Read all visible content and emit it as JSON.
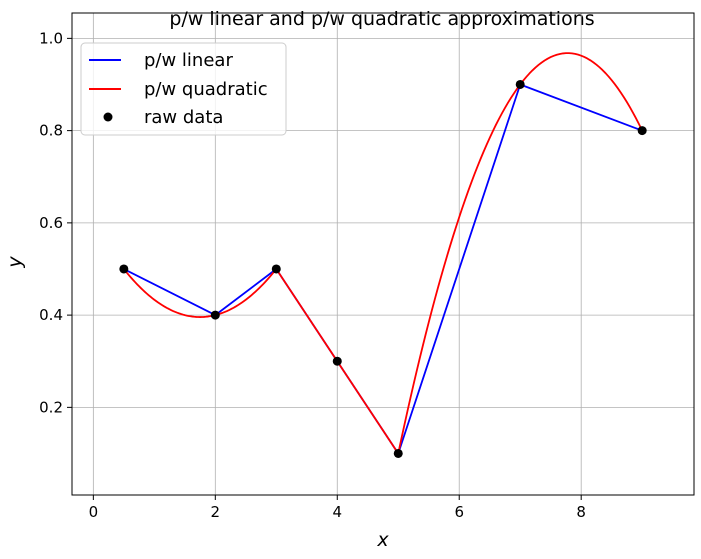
{
  "chart_data": {
    "type": "line",
    "title": "p/w linear and p/w quadratic approximations",
    "xlabel": "x",
    "ylabel": "y",
    "xlim": [
      -0.35,
      9.85
    ],
    "ylim": [
      0.01,
      1.055
    ],
    "xticks": [
      0,
      2,
      4,
      6,
      8
    ],
    "xtick_labels": [
      "0",
      "2",
      "4",
      "6",
      "8"
    ],
    "yticks": [
      0.2,
      0.4,
      0.6,
      0.8,
      1.0
    ],
    "ytick_labels": [
      "0.2",
      "0.4",
      "0.6",
      "0.8",
      "1.0"
    ],
    "grid": true,
    "legend_position": "top-left",
    "raw_data": {
      "x": [
        0.5,
        2,
        3,
        4,
        5,
        7,
        9
      ],
      "y": [
        0.5,
        0.4,
        0.5,
        0.3,
        0.1,
        0.9,
        0.8
      ]
    },
    "series": [
      {
        "name": "p/w linear",
        "color": "#0000ff",
        "style": "line",
        "x": [
          0.5,
          2,
          3,
          4,
          5,
          7,
          9
        ],
        "y": [
          0.5,
          0.4,
          0.5,
          0.3,
          0.1,
          0.9,
          0.8
        ]
      },
      {
        "name": "p/w quadratic",
        "color": "#ff0000",
        "style": "line",
        "x": [
          0.5,
          2,
          3,
          4,
          5,
          7,
          9
        ],
        "y": [
          0.5,
          0.4,
          0.5,
          0.3,
          0.1,
          0.9,
          0.8
        ]
      },
      {
        "name": "raw data",
        "color": "#000000",
        "style": "markers",
        "x": [
          0.5,
          2,
          3,
          4,
          5,
          7,
          9
        ],
        "y": [
          0.5,
          0.4,
          0.5,
          0.3,
          0.1,
          0.9,
          0.8
        ]
      }
    ]
  }
}
